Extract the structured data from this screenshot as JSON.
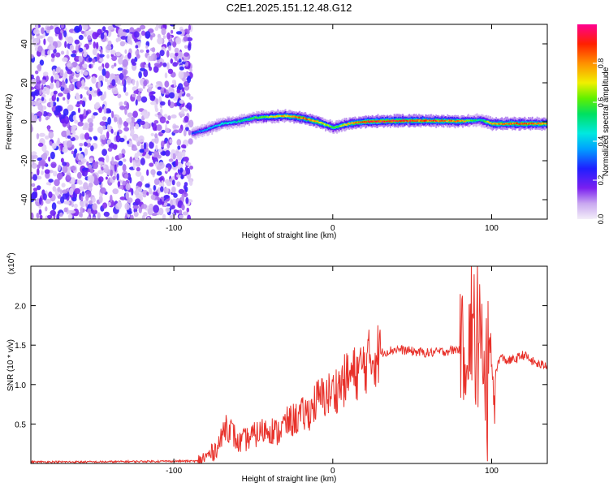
{
  "title": "C2E1.2025.151.12.48.G12",
  "chart_data": [
    {
      "type": "heatmap",
      "xlabel": "Height of straight line (km)",
      "ylabel": "Frequency (Hz)",
      "xlim": [
        -190,
        135
      ],
      "ylim": [
        -50,
        50
      ],
      "xticks": [
        -100,
        0,
        100
      ],
      "yticks": [
        -40,
        -20,
        0,
        20,
        40
      ],
      "colorbar": {
        "label": "Normalized spectral amplitude",
        "range": [
          0,
          1
        ],
        "ticks": [
          0.0,
          0.2,
          0.4,
          0.6,
          0.8
        ]
      },
      "noise_region": {
        "x_range": [
          -190,
          -89
        ],
        "freq_range": [
          -50,
          50
        ]
      },
      "ridge": {
        "x": [
          -89,
          -80,
          -70,
          -60,
          -50,
          -40,
          -30,
          -20,
          -10,
          0,
          10,
          20,
          40,
          60,
          80,
          88,
          92,
          100,
          120,
          135
        ],
        "freq": [
          -6,
          -4,
          -1,
          0,
          2,
          2.5,
          3,
          2,
          0,
          -3,
          -1,
          0,
          0.5,
          0.5,
          0.3,
          0.5,
          1,
          -1,
          -1,
          -1
        ],
        "peak_amplitude": [
          0.3,
          0.4,
          0.45,
          0.5,
          0.6,
          0.7,
          0.8,
          0.9,
          0.85,
          0.6,
          0.8,
          0.95,
          0.95,
          0.9,
          0.85,
          0.6,
          0.5,
          0.85,
          0.9,
          0.85
        ]
      }
    },
    {
      "type": "line",
      "xlabel": "Height of straight line (km)",
      "ylabel": "SNR (10 * v/v)",
      "exponent_label": "(x10",
      "exponent_power": "4",
      "exponent_close": ")",
      "xlim": [
        -190,
        135
      ],
      "ylim": [
        0,
        2.5
      ],
      "xticks": [
        -100,
        0,
        100
      ],
      "yticks": [
        0.5,
        1.0,
        1.5,
        2.0
      ],
      "color": "#e8312a",
      "series": [
        {
          "x": [
            -190,
            -150,
            -100,
            -85,
            -80,
            -75,
            -70,
            -68,
            -65,
            -62,
            -60,
            -55,
            -50,
            -45,
            -40,
            -35,
            -30,
            -25,
            -20,
            -15,
            -10,
            -5,
            0,
            5,
            10,
            15,
            20,
            25,
            30,
            40,
            50,
            60,
            70,
            80,
            85,
            88,
            90,
            92,
            94,
            96,
            98,
            100,
            105,
            110,
            115,
            120,
            125,
            130,
            135
          ],
          "y": [
            0.02,
            0.02,
            0.03,
            0.03,
            0.08,
            0.15,
            0.3,
            0.5,
            0.45,
            0.35,
            0.25,
            0.3,
            0.35,
            0.4,
            0.45,
            0.38,
            0.5,
            0.55,
            0.6,
            0.65,
            0.8,
            0.85,
            0.9,
            1.0,
            1.1,
            1.15,
            1.25,
            1.35,
            1.4,
            1.45,
            1.42,
            1.4,
            1.42,
            1.45,
            1.5,
            1.6,
            1.75,
            1.9,
            1.3,
            1.2,
            1.1,
            0.9,
            1.35,
            1.3,
            1.32,
            1.38,
            1.3,
            1.25,
            1.25
          ]
        }
      ]
    }
  ]
}
